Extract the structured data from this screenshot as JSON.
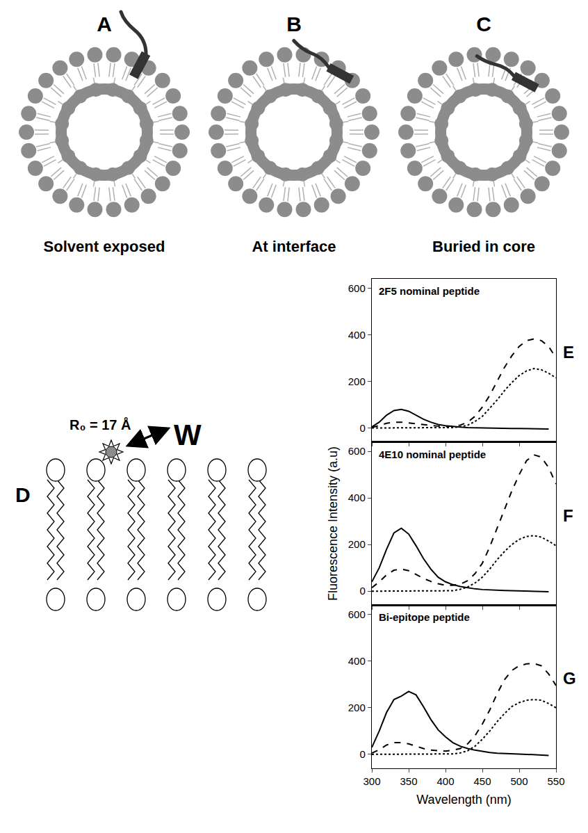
{
  "diagram": {
    "panels": [
      {
        "label": "A",
        "caption": "Solvent exposed"
      },
      {
        "label": "B",
        "caption": "At interface"
      },
      {
        "label": "C",
        "caption": "Buried in core"
      }
    ],
    "fret": {
      "label": "D",
      "distance": "R₀ = 17 Å",
      "acceptor": "W"
    }
  },
  "chart_data": [
    {
      "type": "line",
      "title": "2F5 nominal peptide",
      "annotations": [
        "E"
      ],
      "x": [
        300,
        310,
        320,
        330,
        340,
        350,
        360,
        370,
        380,
        390,
        400,
        410,
        420,
        430,
        440,
        450,
        460,
        470,
        480,
        490,
        500,
        510,
        520,
        530,
        540,
        550
      ],
      "xlim": [
        300,
        550
      ],
      "xticks": [
        300,
        350,
        400,
        450,
        500,
        550
      ],
      "ylim": [
        -60,
        640
      ],
      "yticks": [
        0,
        200,
        400,
        600
      ],
      "grid": false,
      "tick_labels": "y",
      "series": [
        {
          "color": "#000000",
          "line_style": "solid",
          "values": [
            5,
            25,
            55,
            75,
            80,
            72,
            55,
            38,
            25,
            15,
            10,
            6,
            4,
            2,
            1,
            0,
            0,
            -1,
            -1,
            -2,
            -2,
            -3,
            -3,
            -4,
            -4,
            null
          ]
        },
        {
          "color": "#000000",
          "line_style": "dashed",
          "values": [
            2,
            10,
            20,
            25,
            25,
            22,
            18,
            14,
            10,
            8,
            6,
            8,
            12,
            25,
            50,
            90,
            140,
            200,
            260,
            310,
            350,
            375,
            382,
            375,
            350,
            300
          ]
        },
        {
          "color": "#000000",
          "line_style": "dotted",
          "values": [
            0,
            0,
            0,
            0,
            0,
            0,
            0,
            0,
            0,
            0,
            0,
            2,
            5,
            12,
            28,
            50,
            85,
            120,
            160,
            195,
            225,
            245,
            255,
            250,
            235,
            215
          ]
        }
      ]
    },
    {
      "type": "line",
      "title": "4E10 nominal peptide",
      "annotations": [
        "F"
      ],
      "ylabel": "Fluorescence Intensity (a.u)",
      "x": [
        300,
        310,
        320,
        330,
        340,
        350,
        360,
        370,
        380,
        390,
        400,
        410,
        420,
        430,
        440,
        450,
        460,
        470,
        480,
        490,
        500,
        510,
        520,
        530,
        540,
        550
      ],
      "xlim": [
        300,
        550
      ],
      "xticks": [
        300,
        350,
        400,
        450,
        500,
        550
      ],
      "ylim": [
        -60,
        640
      ],
      "yticks": [
        0,
        200,
        400,
        600
      ],
      "grid": false,
      "tick_labels": "y",
      "series": [
        {
          "color": "#000000",
          "line_style": "solid",
          "values": [
            40,
            100,
            180,
            250,
            270,
            245,
            195,
            140,
            95,
            60,
            40,
            28,
            20,
            14,
            10,
            7,
            5,
            4,
            3,
            2,
            1,
            0,
            0,
            -1,
            -2,
            null
          ]
        },
        {
          "color": "#000000",
          "line_style": "dashed",
          "values": [
            15,
            40,
            70,
            90,
            95,
            88,
            72,
            55,
            42,
            32,
            25,
            25,
            30,
            45,
            75,
            120,
            190,
            270,
            350,
            430,
            500,
            560,
            585,
            575,
            530,
            460
          ]
        },
        {
          "color": "#000000",
          "line_style": "dotted",
          "values": [
            0,
            0,
            0,
            0,
            0,
            0,
            0,
            0,
            0,
            0,
            0,
            2,
            8,
            18,
            35,
            60,
            95,
            135,
            170,
            200,
            222,
            235,
            238,
            232,
            215,
            195
          ]
        }
      ]
    },
    {
      "type": "line",
      "title": "Bi-epitope peptide",
      "annotations": [
        "G"
      ],
      "xlabel": "Wavelength (nm)",
      "x": [
        300,
        310,
        320,
        330,
        340,
        350,
        360,
        370,
        380,
        390,
        400,
        410,
        420,
        430,
        440,
        450,
        460,
        470,
        480,
        490,
        500,
        510,
        520,
        530,
        540,
        550
      ],
      "xlim": [
        300,
        550
      ],
      "xticks": [
        300,
        350,
        400,
        450,
        500,
        550
      ],
      "ylim": [
        -60,
        640
      ],
      "yticks": [
        0,
        200,
        400,
        600
      ],
      "grid": false,
      "series": [
        {
          "color": "#000000",
          "line_style": "solid",
          "values": [
            30,
            100,
            180,
            235,
            250,
            270,
            255,
            205,
            150,
            105,
            75,
            50,
            35,
            25,
            18,
            12,
            8,
            5,
            3,
            2,
            1,
            0,
            -2,
            -3,
            -5,
            null
          ]
        },
        {
          "color": "#000000",
          "line_style": "dashed",
          "values": [
            5,
            20,
            40,
            50,
            50,
            45,
            35,
            25,
            18,
            15,
            14,
            18,
            25,
            45,
            80,
            130,
            190,
            260,
            320,
            360,
            380,
            388,
            390,
            380,
            345,
            295
          ]
        },
        {
          "color": "#000000",
          "line_style": "dotted",
          "values": [
            0,
            0,
            0,
            0,
            0,
            0,
            0,
            0,
            0,
            0,
            0,
            2,
            6,
            15,
            35,
            65,
            100,
            140,
            175,
            205,
            222,
            232,
            235,
            232,
            218,
            200
          ]
        }
      ]
    }
  ]
}
